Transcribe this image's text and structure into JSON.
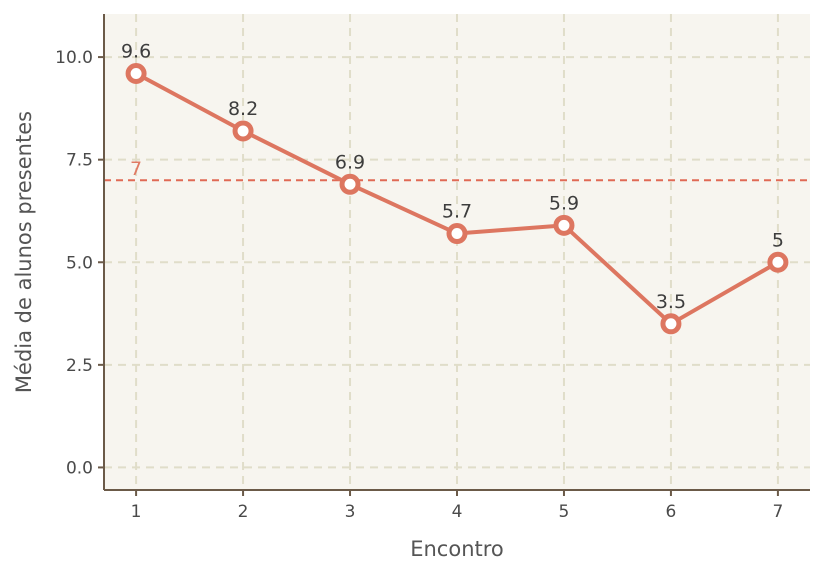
{
  "chart_data": {
    "type": "line",
    "xlabel": "Encontro",
    "ylabel": "Média de alunos presentes",
    "x": [
      1,
      2,
      3,
      4,
      5,
      6,
      7
    ],
    "values": [
      9.6,
      8.2,
      6.9,
      5.7,
      5.9,
      3.5,
      5
    ],
    "data_labels": [
      "9.6",
      "8.2",
      "6.9",
      "5.7",
      "5.9",
      "3.5",
      "5"
    ],
    "xlim": [
      0.7,
      7.3
    ],
    "ylim": [
      -0.55,
      11.05
    ],
    "x_ticks": [
      1,
      2,
      3,
      4,
      5,
      6,
      7
    ],
    "x_tick_labels": [
      "1",
      "2",
      "3",
      "4",
      "5",
      "6",
      "7"
    ],
    "y_ticks": [
      0,
      2.5,
      5,
      7.5,
      10
    ],
    "y_tick_labels": [
      "0.0",
      "2.5",
      "5.0",
      "7.5",
      "10.0"
    ],
    "reference_line": {
      "value": 7,
      "label": "7"
    },
    "grid": true,
    "colors": {
      "line": "#dd7660",
      "marker_fill": "#ffffff",
      "reference": "#e06a55",
      "plot_background": "#f7f5ef",
      "grid": "#e0ddc9",
      "axis": "#6b5a48"
    }
  }
}
